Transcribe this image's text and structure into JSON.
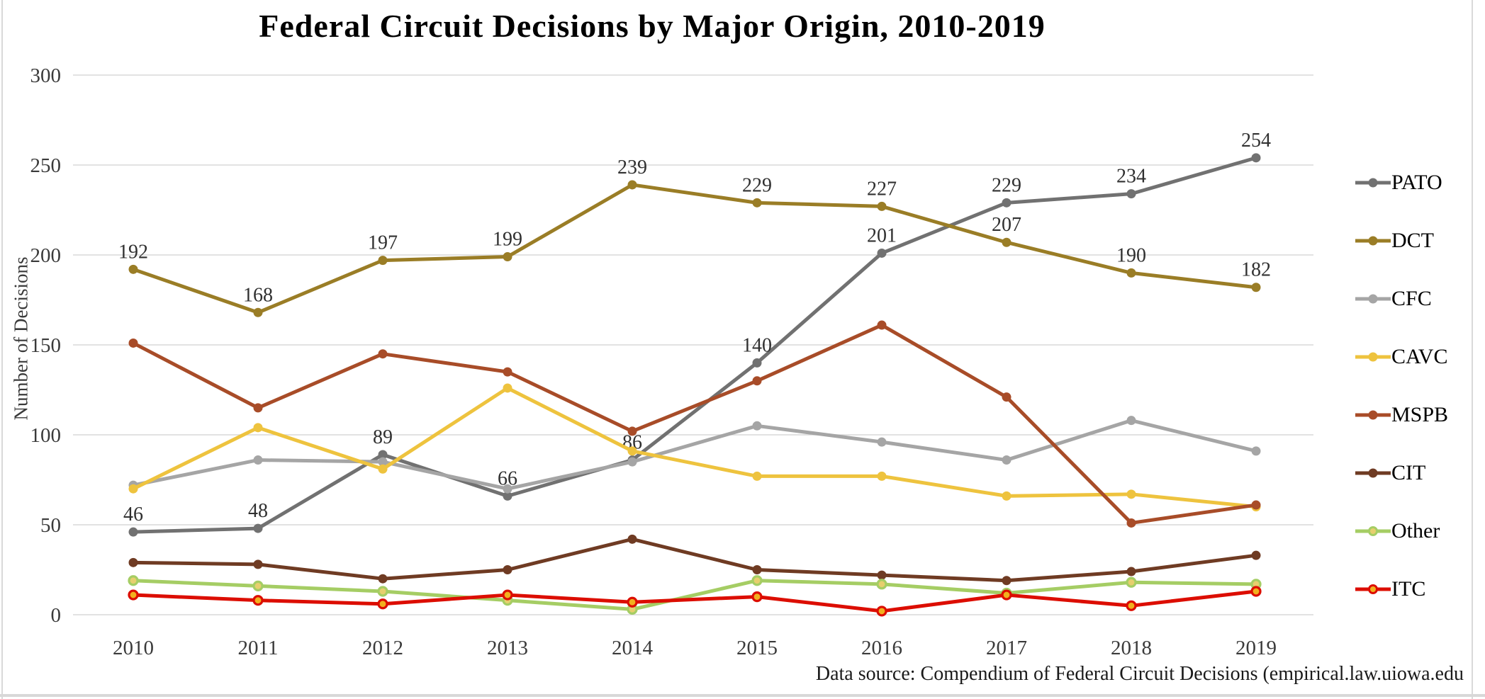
{
  "title": "Federal Circuit Decisions by Major Origin, 2010-2019",
  "footer_note": "Data source: Compendium of Federal Circuit Decisions (empirical.law.uiowa.edu",
  "chart_data": {
    "type": "line",
    "title": "Federal Circuit Decisions by Major Origin, 2010-2019",
    "xlabel": "",
    "ylabel": "Number of Decisions",
    "ylim": [
      0,
      300
    ],
    "y_ticks": [
      0,
      50,
      100,
      150,
      200,
      250,
      300
    ],
    "grid": true,
    "legend_position": "right",
    "gridline_color": "#d9d9d9",
    "axis_text_color": "#3a3a3a",
    "data_label_color": "#303030",
    "categories": [
      "2010",
      "2011",
      "2012",
      "2013",
      "2014",
      "2015",
      "2016",
      "2017",
      "2018",
      "2019"
    ],
    "series": [
      {
        "name": "PATO",
        "color": "#717171",
        "marker": "filled",
        "data_labels": true,
        "values": [
          46,
          48,
          89,
          66,
          86,
          140,
          201,
          229,
          234,
          254
        ]
      },
      {
        "name": "DCT",
        "color": "#9a7d26",
        "marker": "filled",
        "data_labels": true,
        "values": [
          192,
          168,
          197,
          199,
          239,
          229,
          227,
          207,
          190,
          182
        ]
      },
      {
        "name": "CFC",
        "color": "#a5a5a5",
        "marker": "filled",
        "data_labels": false,
        "values": [
          72,
          86,
          85,
          70,
          85,
          105,
          96,
          86,
          108,
          91
        ]
      },
      {
        "name": "CAVC",
        "color": "#eec33e",
        "marker": "filled",
        "data_labels": false,
        "values": [
          70,
          104,
          81,
          126,
          91,
          77,
          77,
          66,
          67,
          60
        ]
      },
      {
        "name": "MSPB",
        "color": "#a84c28",
        "marker": "filled",
        "data_labels": false,
        "values": [
          151,
          115,
          145,
          135,
          102,
          130,
          161,
          121,
          51,
          61
        ]
      },
      {
        "name": "CIT",
        "color": "#6f3b23",
        "marker": "filled",
        "data_labels": false,
        "values": [
          29,
          28,
          20,
          25,
          42,
          25,
          22,
          19,
          24,
          33
        ]
      },
      {
        "name": "Other",
        "color": "#a5cd64",
        "marker": "ring",
        "marker_fill": "#e7cf6e",
        "data_labels": false,
        "values": [
          19,
          16,
          13,
          8,
          3,
          19,
          17,
          12,
          18,
          17
        ]
      },
      {
        "name": "ITC",
        "color": "#dc0d00",
        "marker": "ring",
        "marker_fill": "#f2b01e",
        "data_labels": false,
        "values": [
          11,
          8,
          6,
          11,
          7,
          10,
          2,
          11,
          5,
          13
        ]
      }
    ]
  }
}
